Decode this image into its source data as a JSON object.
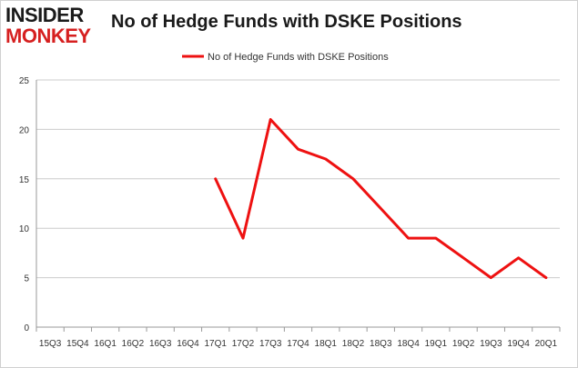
{
  "header": {
    "logo_top": "INSIDER",
    "logo_bottom": "MONKEY",
    "title": "No of Hedge Funds with DSKE Positions"
  },
  "colors": {
    "series": "#ee1111",
    "grid": "#cccccc",
    "axis": "#999999"
  },
  "chart_data": {
    "type": "line",
    "title": "No of Hedge Funds with DSKE Positions",
    "xlabel": "",
    "ylabel": "",
    "ylim": [
      0,
      25
    ],
    "yticks": [
      0,
      5,
      10,
      15,
      20,
      25
    ],
    "grid": "horizontal",
    "legend_position": "top-center",
    "categories": [
      "15Q3",
      "15Q4",
      "16Q1",
      "16Q2",
      "16Q3",
      "16Q4",
      "17Q1",
      "17Q2",
      "17Q3",
      "17Q4",
      "18Q1",
      "18Q2",
      "18Q3",
      "18Q4",
      "19Q1",
      "19Q2",
      "19Q3",
      "19Q4",
      "20Q1"
    ],
    "series": [
      {
        "name": "No of Hedge Funds with DSKE Positions",
        "values": [
          null,
          null,
          null,
          null,
          null,
          null,
          15,
          9,
          21,
          18,
          17,
          15,
          12,
          9,
          9,
          7,
          5,
          7,
          5
        ]
      }
    ]
  }
}
